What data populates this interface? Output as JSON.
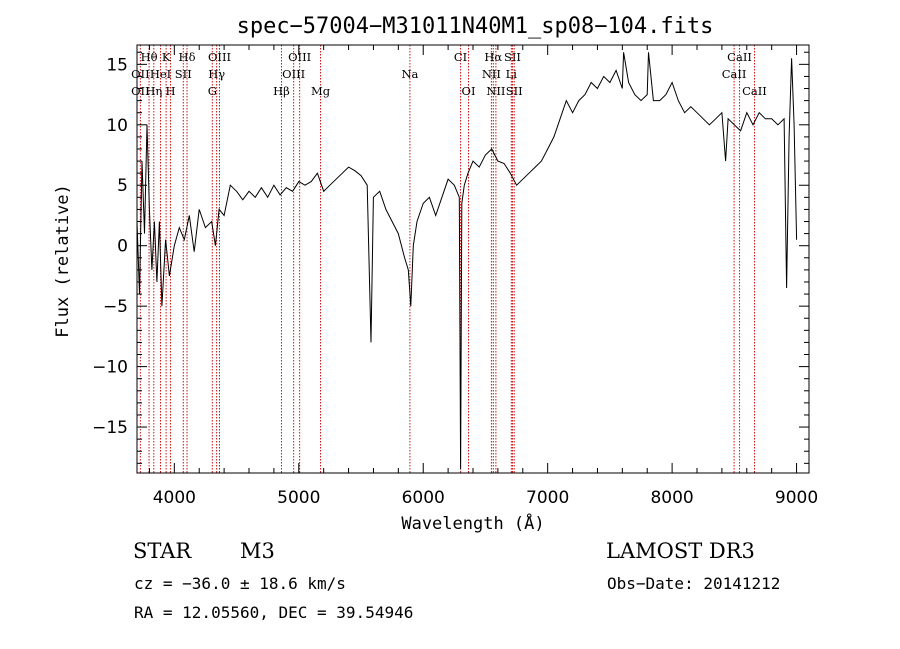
{
  "chart_data": {
    "type": "line",
    "title": "spec−57004−M31011N40M1_sp08−104.fits",
    "xlabel": "Wavelength (Å)",
    "ylabel": "Flux (relative)",
    "xlim": [
      3700,
      9100
    ],
    "ylim": [
      -18.8,
      16.6
    ],
    "xticks": [
      4000,
      5000,
      6000,
      7000,
      8000,
      9000
    ],
    "xtick_labels": [
      "4000",
      "5000",
      "6000",
      "7000",
      "8000",
      "9000"
    ],
    "yticks": [
      -15,
      -10,
      -5,
      0,
      5,
      10,
      15
    ],
    "ytick_labels": [
      "−15",
      "−10",
      "−5",
      "0",
      "5",
      "10",
      "15"
    ],
    "grid": false,
    "spectrum": {
      "x": [
        3700,
        3720,
        3740,
        3760,
        3780,
        3800,
        3820,
        3840,
        3860,
        3880,
        3900,
        3930,
        3960,
        4000,
        4040,
        4080,
        4120,
        4160,
        4200,
        4250,
        4300,
        4330,
        4360,
        4400,
        4450,
        4500,
        4550,
        4600,
        4650,
        4700,
        4750,
        4800,
        4850,
        4900,
        4950,
        5000,
        5050,
        5100,
        5150,
        5200,
        5250,
        5300,
        5350,
        5400,
        5450,
        5500,
        5550,
        5580,
        5600,
        5650,
        5700,
        5750,
        5800,
        5850,
        5880,
        5900,
        5920,
        5950,
        6000,
        6050,
        6100,
        6150,
        6200,
        6250,
        6290,
        6300,
        6310,
        6330,
        6360,
        6400,
        6450,
        6500,
        6550,
        6600,
        6650,
        6700,
        6750,
        6800,
        6850,
        6900,
        6950,
        7000,
        7050,
        7100,
        7150,
        7200,
        7250,
        7300,
        7350,
        7400,
        7450,
        7500,
        7550,
        7600,
        7610,
        7650,
        7700,
        7750,
        7800,
        7810,
        7850,
        7900,
        7950,
        8000,
        8050,
        8100,
        8150,
        8200,
        8250,
        8300,
        8350,
        8400,
        8430,
        8450,
        8500,
        8550,
        8600,
        8650,
        8700,
        8750,
        8800,
        8850,
        8900,
        8920,
        8940,
        8960,
        8980,
        9000
      ],
      "y": [
        2.0,
        -4.0,
        7.0,
        1.0,
        10.0,
        3.0,
        -2.0,
        2.0,
        -3.0,
        2.0,
        -5.0,
        0.5,
        -2.5,
        0.0,
        1.5,
        0.5,
        2.5,
        -0.5,
        3.0,
        1.5,
        2.0,
        0.0,
        3.0,
        2.5,
        5.0,
        4.5,
        3.8,
        4.5,
        4.0,
        4.8,
        4.0,
        5.0,
        4.2,
        4.8,
        4.5,
        5.3,
        5.0,
        5.3,
        6.0,
        4.5,
        5.0,
        5.5,
        6.0,
        6.5,
        6.2,
        5.8,
        5.0,
        -8.0,
        4.0,
        4.5,
        3.0,
        2.0,
        1.0,
        -1.0,
        -2.0,
        -5.0,
        0.0,
        2.0,
        3.5,
        4.0,
        2.5,
        4.0,
        5.5,
        5.0,
        4.0,
        -18.5,
        3.5,
        5.0,
        6.0,
        7.0,
        6.5,
        7.5,
        8.0,
        7.0,
        6.8,
        6.0,
        5.0,
        5.5,
        6.0,
        6.5,
        7.0,
        8.0,
        9.0,
        10.5,
        12.0,
        11.0,
        12.0,
        12.5,
        13.5,
        13.0,
        14.0,
        13.5,
        14.5,
        13.0,
        16.0,
        13.5,
        12.5,
        12.0,
        12.5,
        16.0,
        12.0,
        12.0,
        12.5,
        13.5,
        12.0,
        11.0,
        11.5,
        11.0,
        10.5,
        10.0,
        10.5,
        11.0,
        7.0,
        10.5,
        10.0,
        9.5,
        11.0,
        10.0,
        11.0,
        10.5,
        10.5,
        10.0,
        10.5,
        -3.5,
        9.0,
        15.5,
        10.0,
        0.5
      ]
    },
    "lines_upper": [
      {
        "label": "Hθ",
        "x": 3797
      },
      {
        "label": "K",
        "x": 3934
      },
      {
        "label": "Hδ",
        "x": 4102
      },
      {
        "label": "OIII",
        "x": 4363
      },
      {
        "label": "OIII",
        "x": 5007
      },
      {
        "label": "CI",
        "x": 6300
      },
      {
        "label": "Hα",
        "x": 6563
      },
      {
        "label": "SII",
        "x": 6717
      },
      {
        "label": "CaII",
        "x": 8542
      }
    ],
    "lines_middle": [
      {
        "label": "OII",
        "x": 3727
      },
      {
        "label": "HeI",
        "x": 3889
      },
      {
        "label": "SII",
        "x": 4072
      },
      {
        "label": "Hγ",
        "x": 4340
      },
      {
        "label": "OIII",
        "x": 4959
      },
      {
        "label": "Na",
        "x": 5893
      },
      {
        "label": "NII",
        "x": 6548
      },
      {
        "label": "Li",
        "x": 6708
      },
      {
        "label": "CaII",
        "x": 8498
      }
    ],
    "lines_lower": [
      {
        "label": "OII",
        "x": 3727
      },
      {
        "label": "Hη",
        "x": 3835
      },
      {
        "label": "H",
        "x": 3969
      },
      {
        "label": "G",
        "x": 4305
      },
      {
        "label": "Hβ",
        "x": 4861
      },
      {
        "label": "Mg",
        "x": 5175
      },
      {
        "label": "OI",
        "x": 6364
      },
      {
        "label": "NII",
        "x": 6584
      },
      {
        "label": "SII",
        "x": 6731
      },
      {
        "label": "CaII",
        "x": 8662
      }
    ]
  },
  "info": {
    "object_class": "STAR",
    "subclass": "M3",
    "survey": "LAMOST DR3",
    "cz": "cz = −36.0 ± 18.6 km/s",
    "obs_date": "Obs−Date: 20141212",
    "radec": "RA =  12.05560, DEC =  39.54946"
  },
  "colors": {
    "spectrum": "#000000",
    "line_marker": "#d01010",
    "axes": "#000000"
  }
}
